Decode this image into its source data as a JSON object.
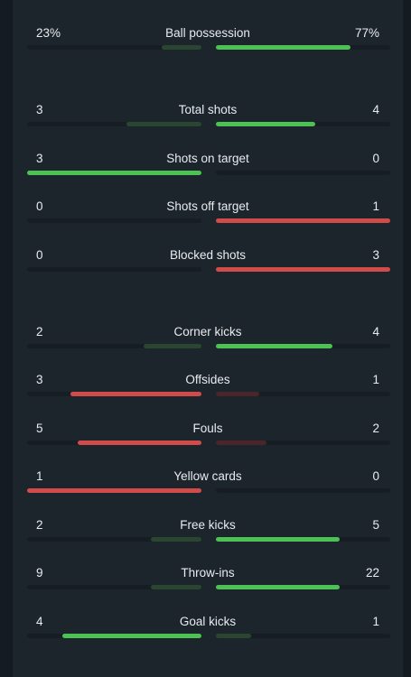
{
  "colors": {
    "green": "#4cc253",
    "green_dim": "#2a4631",
    "red": "#d24b4b",
    "red_dim": "#4a2529"
  },
  "stats": [
    {
      "label": "Ball possession",
      "home": "23%",
      "away": "77%",
      "home_frac": 0.23,
      "away_frac": 0.77,
      "better": "away",
      "color": "green"
    },
    {
      "label": "Total shots",
      "home": "3",
      "away": "4",
      "home_frac": 0.43,
      "away_frac": 0.57,
      "better": "away",
      "color": "green"
    },
    {
      "label": "Shots on target",
      "home": "3",
      "away": "0",
      "home_frac": 1.0,
      "away_frac": 0.0,
      "better": "home",
      "color": "green"
    },
    {
      "label": "Shots off target",
      "home": "0",
      "away": "1",
      "home_frac": 0.0,
      "away_frac": 1.0,
      "better": "away",
      "color": "red"
    },
    {
      "label": "Blocked shots",
      "home": "0",
      "away": "3",
      "home_frac": 0.0,
      "away_frac": 1.0,
      "better": "away",
      "color": "red"
    },
    {
      "label": "Corner kicks",
      "home": "2",
      "away": "4",
      "home_frac": 0.33,
      "away_frac": 0.67,
      "better": "away",
      "color": "green"
    },
    {
      "label": "Offsides",
      "home": "3",
      "away": "1",
      "home_frac": 0.75,
      "away_frac": 0.25,
      "better": "home",
      "color": "red"
    },
    {
      "label": "Fouls",
      "home": "5",
      "away": "2",
      "home_frac": 0.71,
      "away_frac": 0.29,
      "better": "home",
      "color": "red"
    },
    {
      "label": "Yellow cards",
      "home": "1",
      "away": "0",
      "home_frac": 1.0,
      "away_frac": 0.0,
      "better": "home",
      "color": "red"
    },
    {
      "label": "Free kicks",
      "home": "2",
      "away": "5",
      "home_frac": 0.29,
      "away_frac": 0.71,
      "better": "away",
      "color": "green"
    },
    {
      "label": "Throw-ins",
      "home": "9",
      "away": "22",
      "home_frac": 0.29,
      "away_frac": 0.71,
      "better": "away",
      "color": "green"
    },
    {
      "label": "Goal kicks",
      "home": "4",
      "away": "1",
      "home_frac": 0.8,
      "away_frac": 0.2,
      "better": "home",
      "color": "green"
    }
  ]
}
